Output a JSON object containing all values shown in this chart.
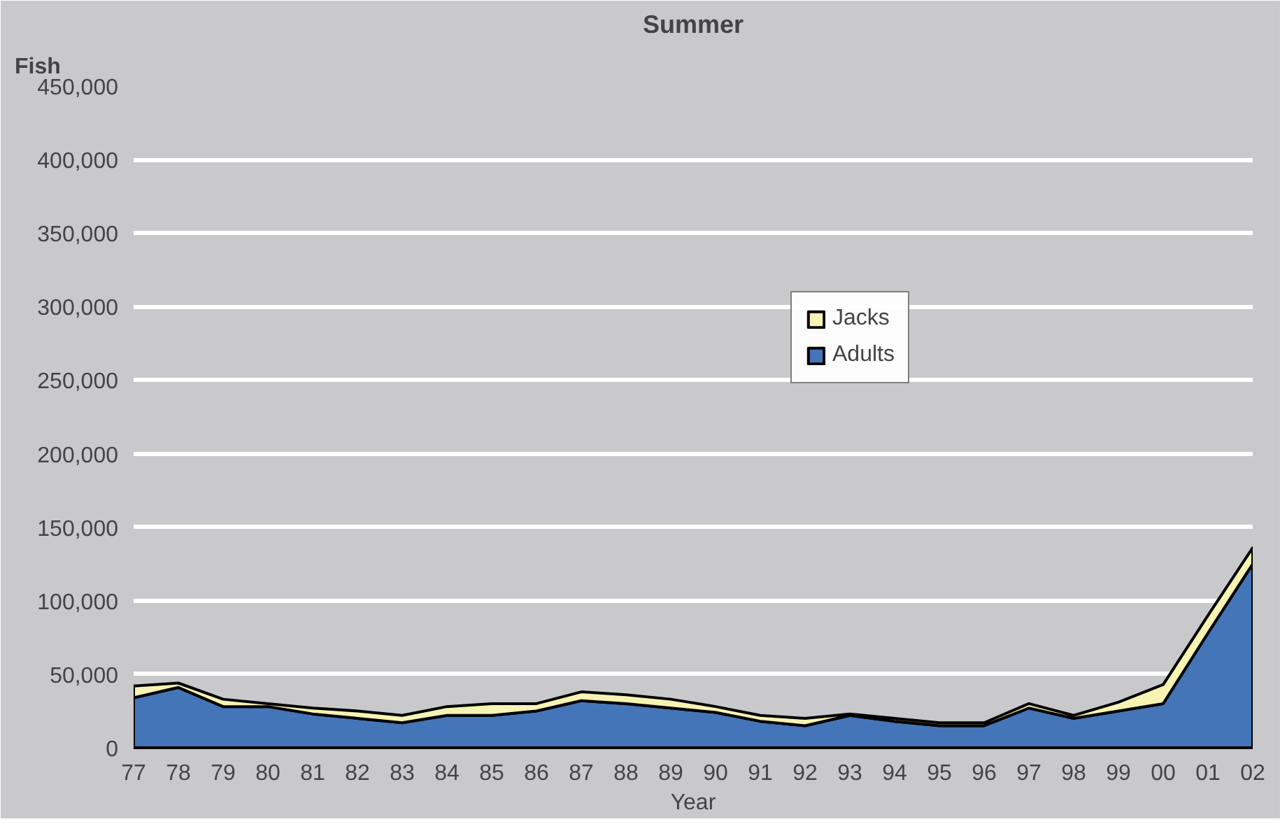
{
  "chart_data": {
    "type": "area",
    "stacked": true,
    "title": "Summer",
    "xlabel": "Year",
    "ylabel": "Fish",
    "categories": [
      "77",
      "78",
      "79",
      "80",
      "81",
      "82",
      "83",
      "84",
      "85",
      "86",
      "87",
      "88",
      "89",
      "90",
      "91",
      "92",
      "93",
      "94",
      "95",
      "96",
      "97",
      "98",
      "99",
      "00",
      "01",
      "02"
    ],
    "series": [
      {
        "name": "Adults",
        "color": "#4475b8",
        "values": [
          34000,
          41000,
          28000,
          28000,
          23000,
          20000,
          17000,
          22000,
          22000,
          25000,
          32000,
          30000,
          27000,
          24000,
          18000,
          15000,
          22000,
          18000,
          15000,
          15000,
          27000,
          20000,
          25000,
          30000,
          78000,
          125000
        ]
      },
      {
        "name": "Jacks",
        "color": "#f7f3b2",
        "values": [
          8000,
          3000,
          5000,
          2000,
          4000,
          5000,
          5000,
          6000,
          8000,
          5000,
          6000,
          6000,
          6000,
          4000,
          4000,
          5000,
          1000,
          2000,
          2000,
          2000,
          3000,
          2000,
          6000,
          13000,
          12000,
          11000
        ]
      }
    ],
    "ylim": [
      0,
      450000
    ],
    "yticks": [
      0,
      {
        "value": 50000,
        "label": "50,000"
      },
      {
        "value": 100000,
        "label": "100,000"
      },
      {
        "value": 150000,
        "label": "150,000"
      },
      {
        "value": 200000,
        "label": "200,000"
      },
      {
        "value": 250000,
        "label": "250,000"
      },
      {
        "value": 300000,
        "label": "300,000"
      },
      {
        "value": 350000,
        "label": "350,000"
      },
      {
        "value": 400000,
        "label": "400,000"
      },
      {
        "value": 450000,
        "label": "450,000"
      }
    ],
    "grid": "y",
    "legend": "center"
  }
}
